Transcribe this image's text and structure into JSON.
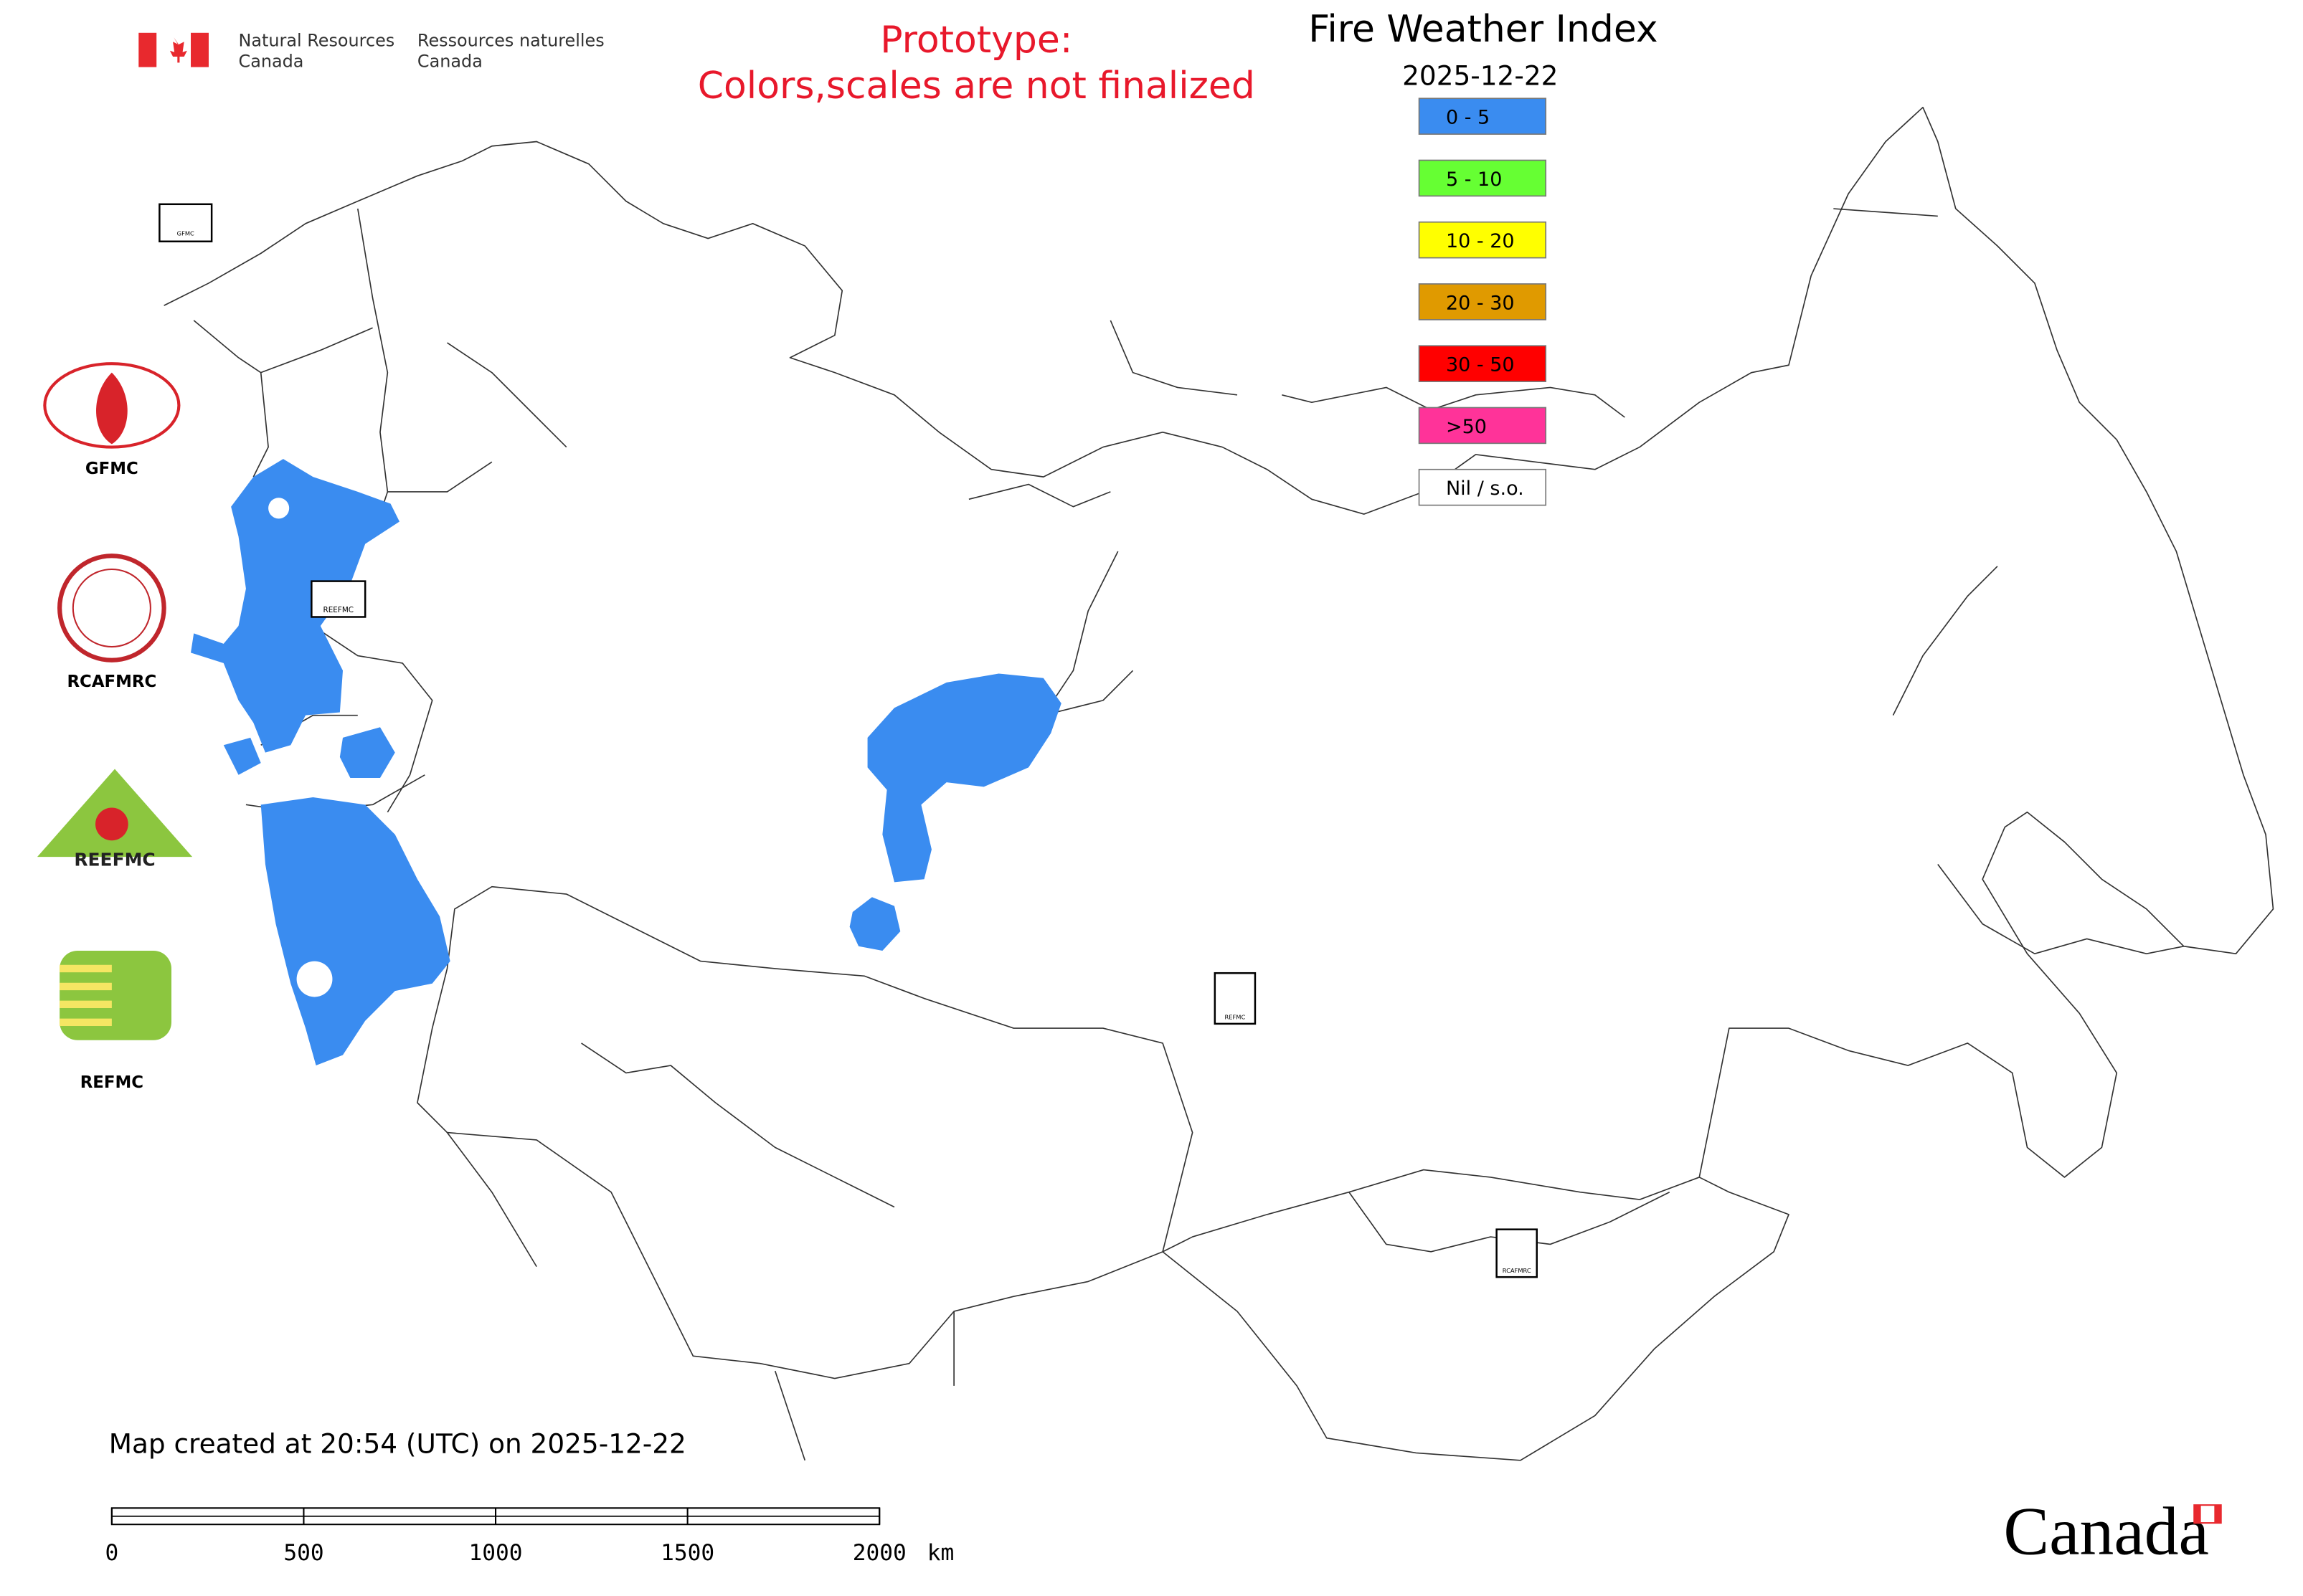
{
  "header": {
    "department_en": [
      "Natural Resources",
      "Canada"
    ],
    "department_fr": [
      "Ressources naturelles",
      "Canada"
    ]
  },
  "notice": [
    "Prototype:",
    "Colors,scales are not finalized"
  ],
  "title": "Fire Weather Index",
  "date": "2025-12-22",
  "legend": [
    {
      "label": "0 - 5",
      "color": "#3a8cf0"
    },
    {
      "label": "5 - 10",
      "color": "#66ff33"
    },
    {
      "label": "10 - 20",
      "color": "#ffff00"
    },
    {
      "label": "20 - 30",
      "color": "#e09a00"
    },
    {
      "label": "30 - 50",
      "color": "#ff0000"
    },
    {
      "label": ">50",
      "color": "#ff3399"
    },
    {
      "label": "Nil / s.o.",
      "color": "#ffffff"
    }
  ],
  "logos": [
    "GFMC",
    "RCAFMRC",
    "REEFMC",
    "REFMC"
  ],
  "footer": "Map created at 20:54 (UTC) on 2025-12-22",
  "scale_bar": {
    "ticks": [
      0,
      500,
      1000,
      1500,
      2000
    ],
    "unit": "km"
  },
  "wordmark": "Canada"
}
